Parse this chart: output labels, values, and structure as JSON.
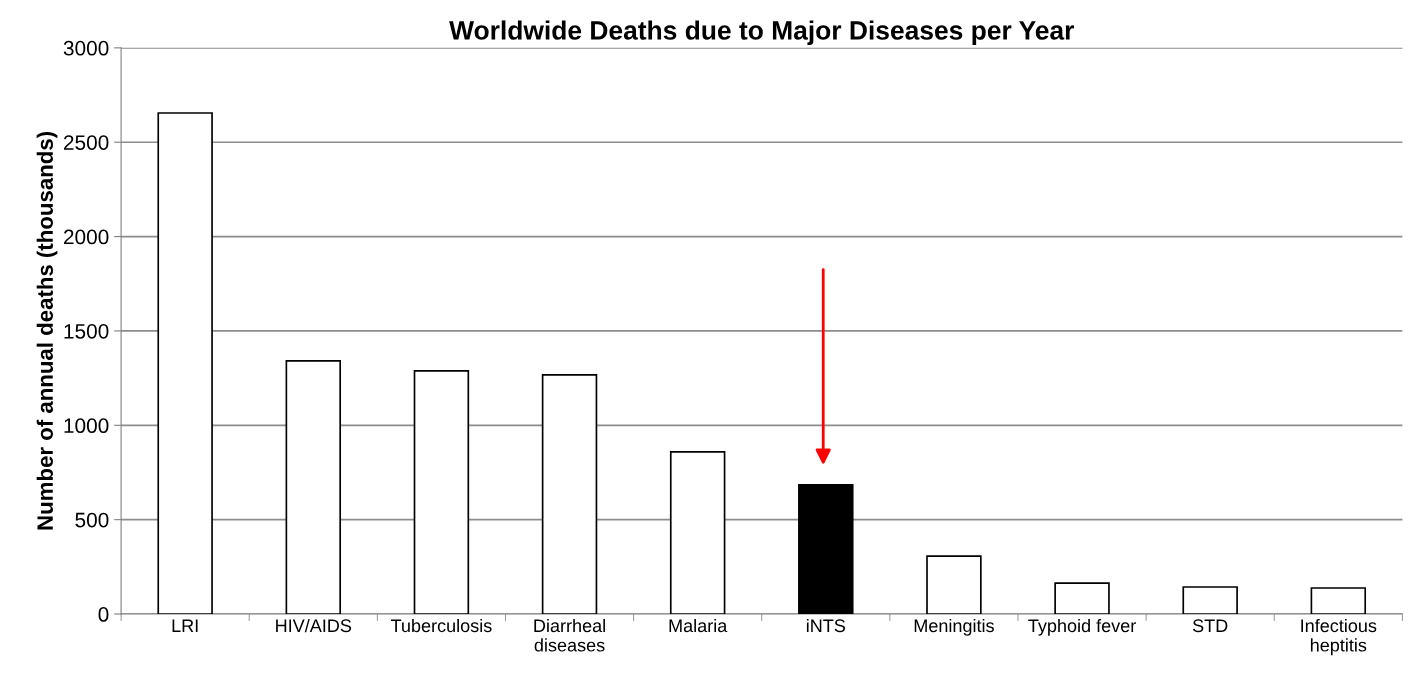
{
  "chart_data": {
    "type": "bar",
    "title": "Worldwide Deaths due to Major Diseases per Year",
    "ylabel": "Number of annual deaths (thousands)",
    "categories": [
      "LRI",
      "HIV/AIDS",
      "Tuberculosis",
      "Diarrheal\ndiseases",
      "Malaria",
      "iNTS",
      "Meningitis",
      "Typhoid fever",
      "STD",
      "Infectious\nheptitis"
    ],
    "values": [
      2655,
      1341,
      1288,
      1267,
      859,
      684,
      307,
      164,
      143,
      138
    ],
    "colors": [
      "#ffffff",
      "#ffffff",
      "#ffffff",
      "#ffffff",
      "#ffffff",
      "#000000",
      "#ffffff",
      "#ffffff",
      "#ffffff",
      "#ffffff"
    ],
    "ylim": [
      0,
      3000
    ],
    "yticks": [
      0,
      500,
      1000,
      1500,
      2000,
      2500,
      3000
    ],
    "grid": "y",
    "legend": false
  }
}
